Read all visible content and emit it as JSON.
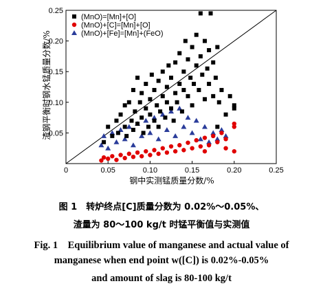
{
  "chart_data": {
    "type": "scatter",
    "xlabel": "钢中实测锰质量分数/%",
    "ylabel": "渣钢平衡时钢水锰质量分数/%",
    "xlim": [
      0,
      0.25
    ],
    "ylim": [
      0,
      0.25
    ],
    "x_ticks": [
      0,
      0.05,
      0.1,
      0.15,
      0.2,
      0.25
    ],
    "x_tick_labels": [
      "0",
      "0.05",
      "0.10",
      "0.15",
      "0.20",
      "0.25"
    ],
    "y_ticks": [
      0.05,
      0.1,
      0.15,
      0.2,
      0.25
    ],
    "y_tick_labels": [
      "0.05",
      "0.10",
      "0.15",
      "0.20",
      "0.25"
    ],
    "reference_line": {
      "from": [
        0,
        0
      ],
      "to": [
        0.25,
        0.25
      ]
    },
    "legend_position": "top-left",
    "series": [
      {
        "name": "(MnO)=[Mn]+[O]",
        "marker": "square",
        "color": "#000000",
        "points": [
          [
            0.045,
            0.035
          ],
          [
            0.05,
            0.06
          ],
          [
            0.055,
            0.045
          ],
          [
            0.06,
            0.07
          ],
          [
            0.062,
            0.05
          ],
          [
            0.065,
            0.08
          ],
          [
            0.07,
            0.06
          ],
          [
            0.07,
            0.095
          ],
          [
            0.072,
            0.045
          ],
          [
            0.075,
            0.1
          ],
          [
            0.078,
            0.07
          ],
          [
            0.08,
            0.055
          ],
          [
            0.08,
            0.12
          ],
          [
            0.082,
            0.085
          ],
          [
            0.085,
            0.065
          ],
          [
            0.085,
            0.14
          ],
          [
            0.088,
            0.1
          ],
          [
            0.09,
            0.075
          ],
          [
            0.09,
            0.115
          ],
          [
            0.092,
            0.05
          ],
          [
            0.095,
            0.09
          ],
          [
            0.095,
            0.13
          ],
          [
            0.098,
            0.06
          ],
          [
            0.1,
            0.105
          ],
          [
            0.1,
            0.08
          ],
          [
            0.102,
            0.145
          ],
          [
            0.105,
            0.07
          ],
          [
            0.105,
            0.12
          ],
          [
            0.108,
            0.095
          ],
          [
            0.11,
            0.06
          ],
          [
            0.11,
            0.135
          ],
          [
            0.112,
            0.085
          ],
          [
            0.115,
            0.11
          ],
          [
            0.115,
            0.15
          ],
          [
            0.118,
            0.075
          ],
          [
            0.12,
            0.1
          ],
          [
            0.12,
            0.125
          ],
          [
            0.122,
            0.16
          ],
          [
            0.125,
            0.09
          ],
          [
            0.125,
            0.14
          ],
          [
            0.128,
            0.07
          ],
          [
            0.13,
            0.115
          ],
          [
            0.13,
            0.165
          ],
          [
            0.132,
            0.1
          ],
          [
            0.135,
            0.13
          ],
          [
            0.135,
            0.18
          ],
          [
            0.138,
            0.085
          ],
          [
            0.14,
            0.12
          ],
          [
            0.14,
            0.15
          ],
          [
            0.142,
            0.2
          ],
          [
            0.145,
            0.11
          ],
          [
            0.145,
            0.17
          ],
          [
            0.148,
            0.14
          ],
          [
            0.15,
            0.095
          ],
          [
            0.15,
            0.19
          ],
          [
            0.152,
            0.13
          ],
          [
            0.155,
            0.16
          ],
          [
            0.155,
            0.21
          ],
          [
            0.158,
            0.12
          ],
          [
            0.16,
            0.175
          ],
          [
            0.16,
            0.245
          ],
          [
            0.162,
            0.145
          ],
          [
            0.165,
            0.105
          ],
          [
            0.165,
            0.2
          ],
          [
            0.168,
            0.155
          ],
          [
            0.17,
            0.13
          ],
          [
            0.17,
            0.185
          ],
          [
            0.172,
            0.245
          ],
          [
            0.175,
            0.11
          ],
          [
            0.175,
            0.165
          ],
          [
            0.178,
            0.14
          ],
          [
            0.18,
            0.19
          ],
          [
            0.18,
            0.06
          ],
          [
            0.182,
            0.1
          ],
          [
            0.185,
            0.12
          ],
          [
            0.19,
            0.08
          ],
          [
            0.195,
            0.11
          ],
          [
            0.2,
            0.09
          ],
          [
            0.2,
            0.095
          ]
        ]
      },
      {
        "name": "(MnO)+[C]=[Mn]+[O]",
        "marker": "circle",
        "color": "#e00000",
        "points": [
          [
            0.042,
            0.005
          ],
          [
            0.045,
            0.01
          ],
          [
            0.05,
            0.008
          ],
          [
            0.055,
            0.012
          ],
          [
            0.06,
            0.006
          ],
          [
            0.065,
            0.014
          ],
          [
            0.07,
            0.009
          ],
          [
            0.075,
            0.016
          ],
          [
            0.08,
            0.011
          ],
          [
            0.085,
            0.018
          ],
          [
            0.09,
            0.012
          ],
          [
            0.095,
            0.02
          ],
          [
            0.1,
            0.014
          ],
          [
            0.105,
            0.022
          ],
          [
            0.11,
            0.016
          ],
          [
            0.115,
            0.025
          ],
          [
            0.12,
            0.018
          ],
          [
            0.125,
            0.028
          ],
          [
            0.13,
            0.02
          ],
          [
            0.135,
            0.03
          ],
          [
            0.14,
            0.022
          ],
          [
            0.145,
            0.034
          ],
          [
            0.15,
            0.025
          ],
          [
            0.155,
            0.038
          ],
          [
            0.16,
            0.028
          ],
          [
            0.165,
            0.042
          ],
          [
            0.17,
            0.03
          ],
          [
            0.175,
            0.045
          ],
          [
            0.18,
            0.035
          ],
          [
            0.185,
            0.05
          ],
          [
            0.19,
            0.04
          ],
          [
            0.2,
            0.06
          ],
          [
            0.2,
            0.065
          ],
          [
            0.2,
            0.02
          ],
          [
            0.19,
            0.025
          ],
          [
            0.165,
            0.02
          ]
        ]
      },
      {
        "name": "(MnO)+[Fe]=[Mn]+(FeO)",
        "marker": "triangle",
        "color": "#2a3c9a",
        "points": [
          [
            0.042,
            0.03
          ],
          [
            0.045,
            0.045
          ],
          [
            0.05,
            0.025
          ],
          [
            0.055,
            0.05
          ],
          [
            0.06,
            0.035
          ],
          [
            0.065,
            0.055
          ],
          [
            0.07,
            0.04
          ],
          [
            0.075,
            0.06
          ],
          [
            0.08,
            0.03
          ],
          [
            0.085,
            0.065
          ],
          [
            0.09,
            0.045
          ],
          [
            0.095,
            0.07
          ],
          [
            0.1,
            0.05
          ],
          [
            0.105,
            0.075
          ],
          [
            0.11,
            0.04
          ],
          [
            0.115,
            0.08
          ],
          [
            0.12,
            0.055
          ],
          [
            0.125,
            0.085
          ],
          [
            0.13,
            0.045
          ],
          [
            0.135,
            0.09
          ],
          [
            0.14,
            0.06
          ],
          [
            0.145,
            0.075
          ],
          [
            0.15,
            0.05
          ],
          [
            0.155,
            0.07
          ],
          [
            0.16,
            0.04
          ],
          [
            0.165,
            0.06
          ],
          [
            0.17,
            0.035
          ],
          [
            0.175,
            0.05
          ],
          [
            0.18,
            0.04
          ],
          [
            0.185,
            0.055
          ],
          [
            0.19,
            0.045
          ]
        ]
      }
    ]
  },
  "caption": {
    "cn_line1": "图 1　转炉终点[C]质量分数为 0.02%～0.05%、",
    "cn_line2": "渣量为 80～100 kg/t 时锰平衡值与实测值",
    "en_line1": "Fig. 1　Equilibrium value of manganese and actual value of",
    "en_line2": "manganese when end point w([C]) is 0.02%-0.05%",
    "en_line3": "and amount of slag is 80-100 kg/t"
  }
}
